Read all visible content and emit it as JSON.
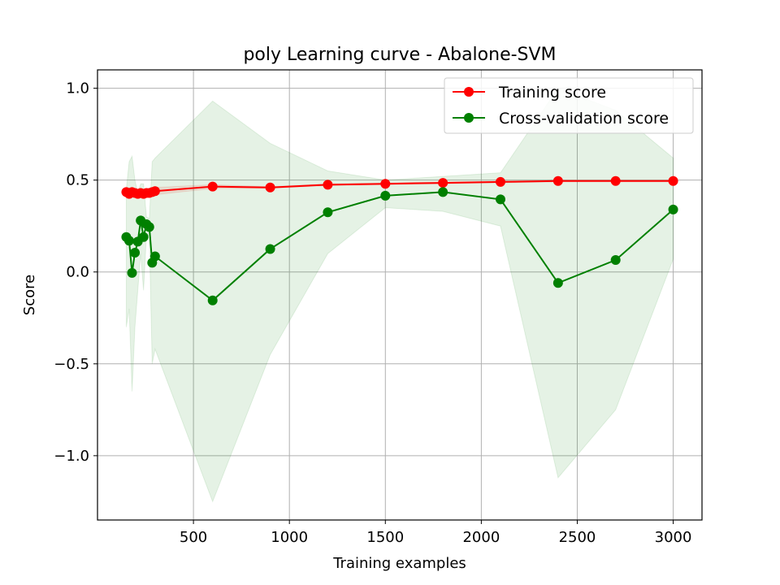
{
  "chart_data": {
    "type": "line",
    "title": "poly Learning curve - Abalone-SVM",
    "xlabel": "Training examples",
    "ylabel": "Score",
    "xlim": [
      0,
      3150
    ],
    "ylim": [
      -1.35,
      1.1
    ],
    "xticks": [
      500,
      1000,
      1500,
      2000,
      2500,
      3000
    ],
    "xtick_labels": [
      "500",
      "1000",
      "1500",
      "2000",
      "2500",
      "3000"
    ],
    "yticks": [
      -1.0,
      -0.5,
      0.0,
      0.5,
      1.0
    ],
    "ytick_labels": [
      "−1.0",
      "−0.5",
      "0.0",
      "0.5",
      "1.0"
    ],
    "grid": true,
    "legend_position": "top-right",
    "series": [
      {
        "name": "Training score",
        "color": "#ff0000",
        "x": [
          150,
          165,
          180,
          195,
          210,
          225,
          240,
          255,
          270,
          285,
          300,
          600,
          900,
          1200,
          1500,
          1800,
          2100,
          2400,
          2700,
          3000
        ],
        "y": [
          0.435,
          0.425,
          0.435,
          0.43,
          0.425,
          0.43,
          0.425,
          0.43,
          0.43,
          0.435,
          0.44,
          0.465,
          0.46,
          0.475,
          0.48,
          0.485,
          0.49,
          0.495,
          0.495,
          0.495
        ],
        "band_lower": [
          0.41,
          0.4,
          0.41,
          0.41,
          0.4,
          0.41,
          0.4,
          0.41,
          0.41,
          0.41,
          0.42,
          0.455,
          0.455,
          0.47,
          0.475,
          0.48,
          0.485,
          0.49,
          0.49,
          0.49
        ],
        "band_upper": [
          0.46,
          0.45,
          0.46,
          0.45,
          0.45,
          0.45,
          0.45,
          0.45,
          0.45,
          0.46,
          0.46,
          0.475,
          0.465,
          0.48,
          0.485,
          0.49,
          0.495,
          0.5,
          0.5,
          0.5
        ]
      },
      {
        "name": "Cross-validation score",
        "color": "#008000",
        "x": [
          150,
          165,
          180,
          195,
          210,
          225,
          240,
          255,
          270,
          285,
          300,
          600,
          900,
          1200,
          1500,
          1800,
          2100,
          2400,
          2700,
          3000
        ],
        "y": [
          0.19,
          0.17,
          -0.005,
          0.105,
          0.165,
          0.28,
          0.19,
          0.26,
          0.245,
          0.05,
          0.085,
          -0.155,
          0.125,
          0.325,
          0.415,
          0.435,
          0.395,
          -0.06,
          0.065,
          0.34
        ],
        "band_lower": [
          -0.3,
          -0.2,
          -0.65,
          -0.3,
          -0.1,
          0.1,
          -0.1,
          0.2,
          0.2,
          -0.5,
          -0.42,
          -1.25,
          -0.45,
          0.1,
          0.35,
          0.33,
          0.25,
          -1.12,
          -0.75,
          0.07
        ],
        "band_upper": [
          0.45,
          0.6,
          0.63,
          0.5,
          0.43,
          0.48,
          0.48,
          0.3,
          0.29,
          0.6,
          0.62,
          0.93,
          0.7,
          0.55,
          0.5,
          0.52,
          0.54,
          1.0,
          0.88,
          0.62
        ]
      }
    ]
  }
}
